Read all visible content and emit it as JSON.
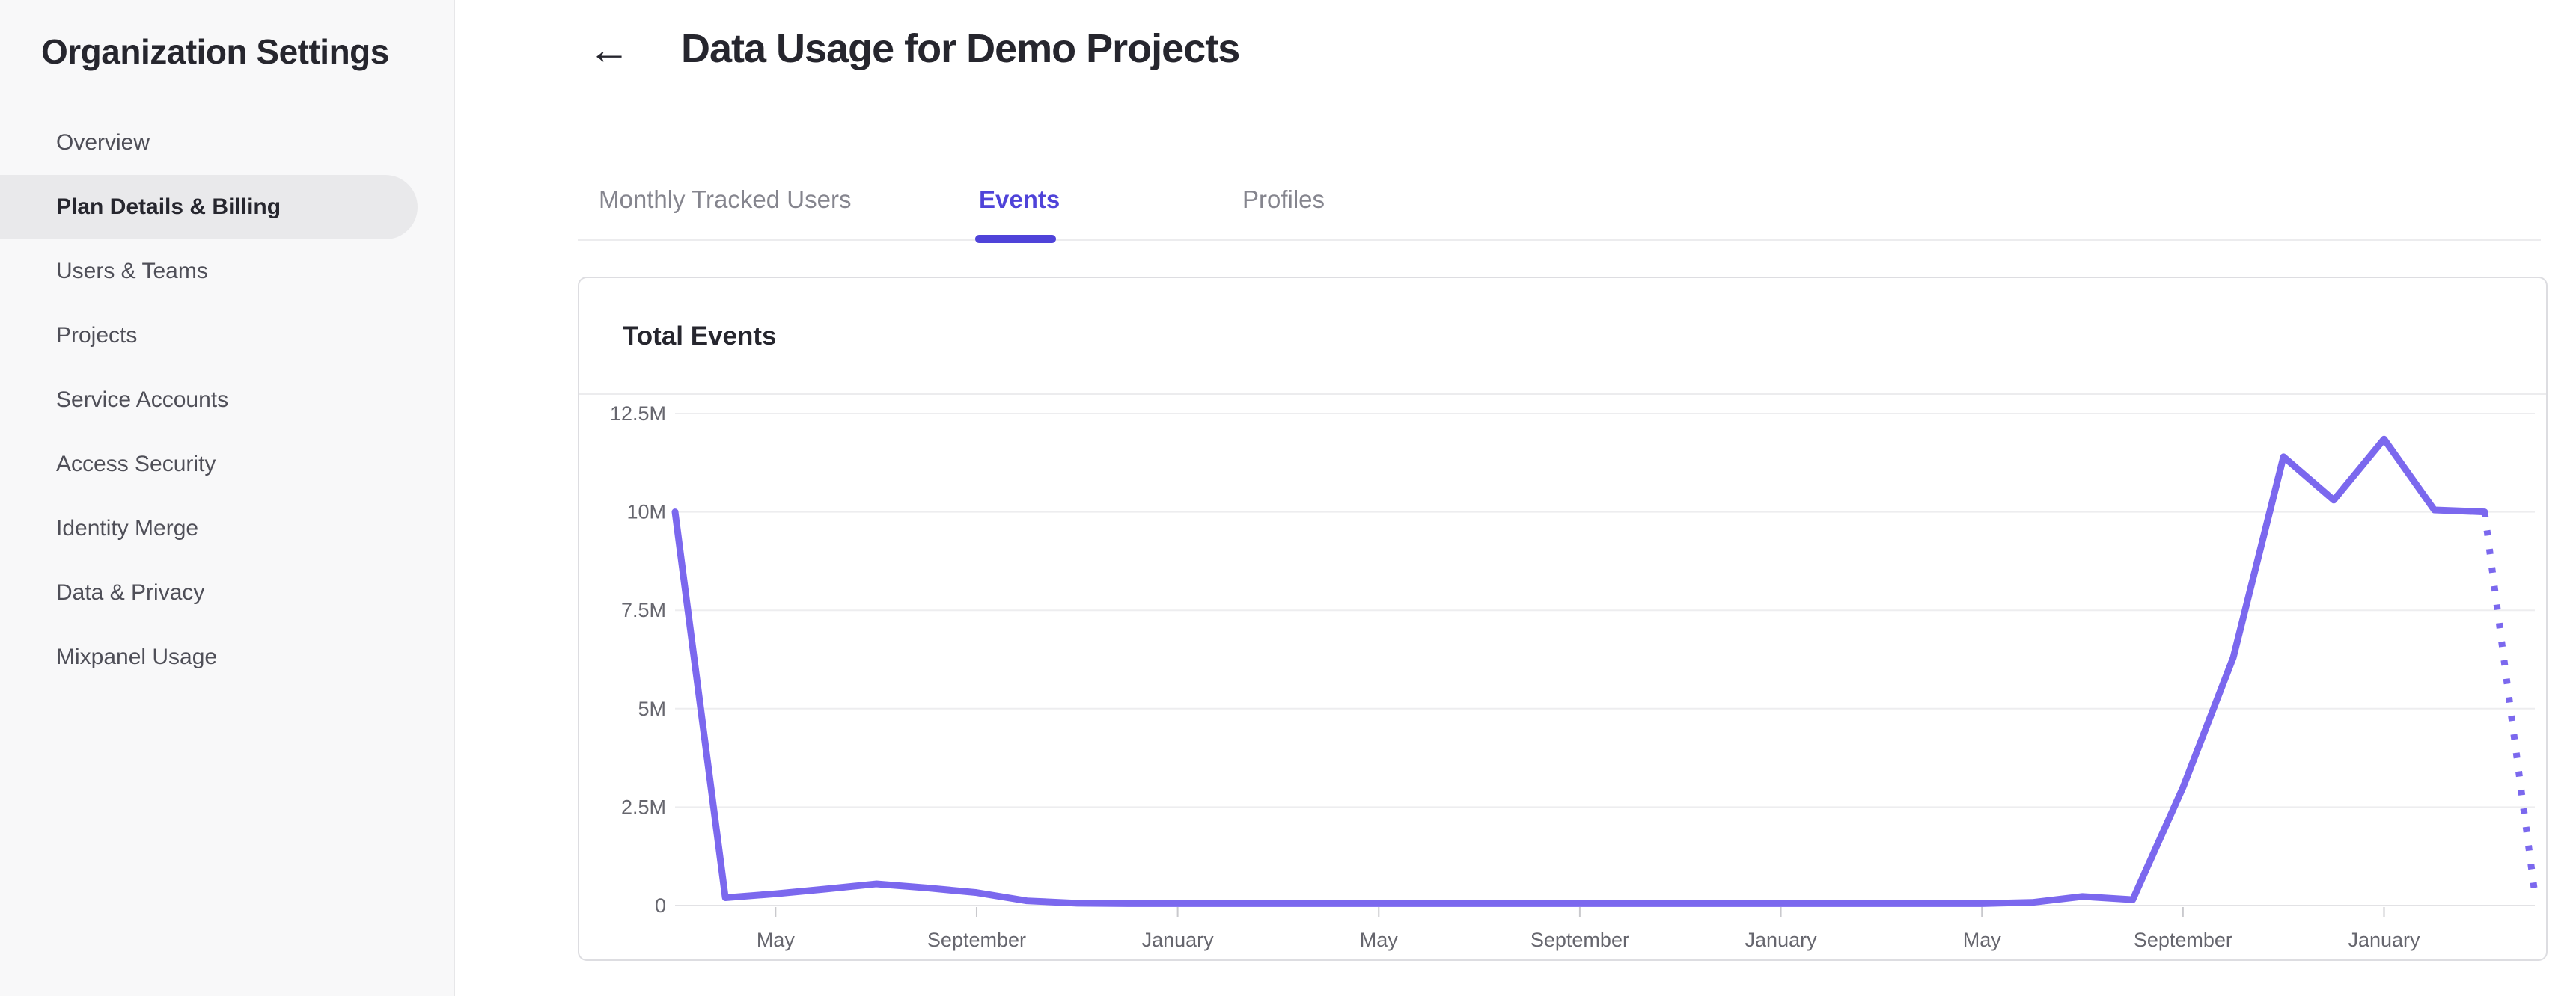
{
  "sidebar": {
    "title": "Organization Settings",
    "items": [
      {
        "label": "Overview",
        "selected": false
      },
      {
        "label": "Plan Details & Billing",
        "selected": true
      },
      {
        "label": "Users & Teams",
        "selected": false
      },
      {
        "label": "Projects",
        "selected": false
      },
      {
        "label": "Service Accounts",
        "selected": false
      },
      {
        "label": "Access Security",
        "selected": false
      },
      {
        "label": "Identity Merge",
        "selected": false
      },
      {
        "label": "Data & Privacy",
        "selected": false
      },
      {
        "label": "Mixpanel Usage",
        "selected": false
      }
    ]
  },
  "header": {
    "back_icon": "←",
    "title": "Data Usage for Demo Projects"
  },
  "tabs": [
    {
      "label": "Monthly Tracked Users",
      "active": false
    },
    {
      "label": "Events",
      "active": true
    },
    {
      "label": "Profiles",
      "active": false
    }
  ],
  "card": {
    "title": "Total Events"
  },
  "colors": {
    "accent_tab": "#4f43d9",
    "line": "#7b68ee",
    "gridline": "#ededef",
    "axis_line": "#e2e2e5",
    "tick": "#c9c9cd",
    "axis_text": "#66666e"
  },
  "chart_data": {
    "type": "line",
    "title": "Total Events",
    "series_name": "Total Events",
    "x_unit": "month",
    "grid": "horizontal",
    "legend": "none",
    "ylim_millions": [
      0,
      12.5
    ],
    "y_tick_labels": [
      "12.5M",
      "10M",
      "7.5M",
      "5M",
      "2.5M",
      "0"
    ],
    "y_tick_values_millions": [
      12.5,
      10,
      7.5,
      5,
      2.5,
      0
    ],
    "x_tick_labels": [
      "May",
      "September",
      "January",
      "May",
      "September",
      "January",
      "May",
      "September",
      "January"
    ],
    "x_tick_indices": [
      2,
      6,
      10,
      14,
      18,
      22,
      26,
      30,
      34
    ],
    "values_millions": [
      10,
      0.2,
      0.3,
      0.42,
      0.55,
      0.45,
      0.33,
      0.12,
      0.06,
      0.05,
      0.05,
      0.05,
      0.05,
      0.05,
      0.05,
      0.05,
      0.05,
      0.05,
      0.05,
      0.05,
      0.05,
      0.05,
      0.05,
      0.05,
      0.05,
      0.05,
      0.05,
      0.08,
      0.23,
      0.15,
      3.0,
      6.3,
      11.4,
      10.3,
      11.85,
      10.05,
      10.0
    ],
    "dotted_projection": {
      "from_index": 36,
      "to_index": 37,
      "to_value_millions": 0.3
    }
  }
}
